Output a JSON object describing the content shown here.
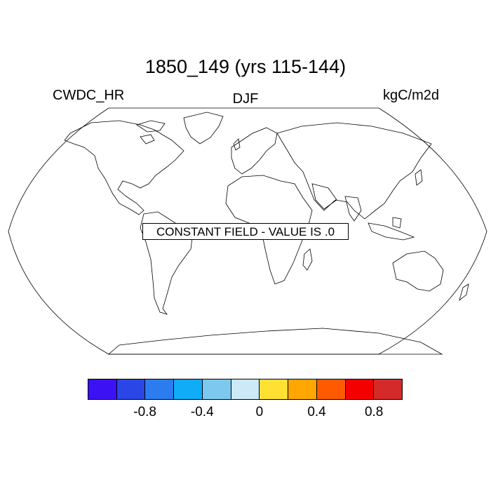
{
  "title": "1850_149 (yrs 115-144)",
  "left_label": "CWDC_HR",
  "center_label": "DJF",
  "right_label": "kgC/m2d",
  "notice": "CONSTANT FIELD - VALUE IS .0",
  "colorbar": {
    "colors": [
      "#3c12f5",
      "#2b46e6",
      "#2b7cef",
      "#10acf7",
      "#7cc8ee",
      "#cde8f7",
      "#ffe033",
      "#ffa600",
      "#ff5a00",
      "#f50000",
      "#d42a2a"
    ],
    "tick_labels": [
      "-0.8",
      "-0.4",
      "0",
      "0.4",
      "0.8"
    ]
  }
}
